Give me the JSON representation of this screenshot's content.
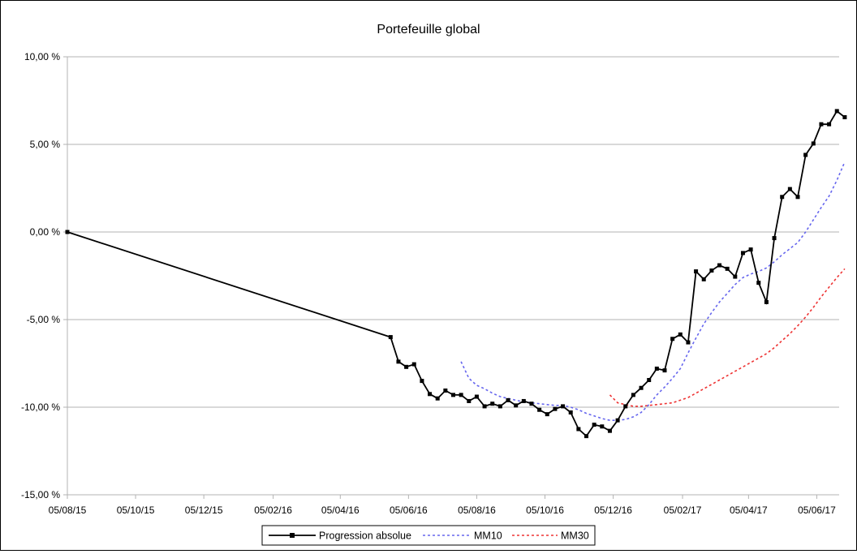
{
  "chart_data": {
    "type": "line",
    "title": "Portefeuille global",
    "xlabel": "",
    "ylabel": "",
    "ylim": [
      -15,
      10
    ],
    "y_ticks": [
      10,
      5,
      0,
      -5,
      -10,
      -15
    ],
    "y_tick_labels": [
      "10,00 %",
      "5,00 %",
      "0,00 %",
      "-5,00 %",
      "-10,00 %",
      "-15,00 %"
    ],
    "x_ticks": [
      "2015-08-05",
      "2015-10-05",
      "2015-12-05",
      "2016-02-05",
      "2016-04-05",
      "2016-06-05",
      "2016-08-05",
      "2016-10-05",
      "2016-12-05",
      "2017-02-05",
      "2017-04-05",
      "2017-06-05"
    ],
    "x_tick_labels": [
      "05/08/15",
      "05/10/15",
      "05/12/15",
      "05/02/16",
      "05/04/16",
      "05/06/16",
      "05/08/16",
      "05/10/16",
      "05/12/16",
      "05/02/17",
      "05/04/17",
      "05/06/17"
    ],
    "xlim": [
      "2015-08-05",
      "2017-06-25"
    ],
    "grid": "horizontal",
    "legend_position": "bottom",
    "legend": [
      "Progression absolue",
      "MM10",
      "MM30"
    ],
    "series": [
      {
        "name": "Progression absolue",
        "color": "#000000",
        "style": "solid-square-markers",
        "points": [
          [
            "2015-08-05",
            0.0
          ],
          [
            "2016-05-20",
            -6.0
          ],
          [
            "2016-05-27",
            -7.4
          ],
          [
            "2016-06-03",
            -7.7
          ],
          [
            "2016-06-10",
            -7.55
          ],
          [
            "2016-06-17",
            -8.5
          ],
          [
            "2016-06-24",
            -9.25
          ],
          [
            "2016-07-01",
            -9.5
          ],
          [
            "2016-07-08",
            -9.05
          ],
          [
            "2016-07-15",
            -9.3
          ],
          [
            "2016-07-22",
            -9.3
          ],
          [
            "2016-07-29",
            -9.65
          ],
          [
            "2016-08-05",
            -9.4
          ],
          [
            "2016-08-12",
            -9.95
          ],
          [
            "2016-08-19",
            -9.8
          ],
          [
            "2016-08-26",
            -9.95
          ],
          [
            "2016-09-02",
            -9.6
          ],
          [
            "2016-09-09",
            -9.9
          ],
          [
            "2016-09-16",
            -9.65
          ],
          [
            "2016-09-23",
            -9.8
          ],
          [
            "2016-09-30",
            -10.15
          ],
          [
            "2016-10-07",
            -10.4
          ],
          [
            "2016-10-14",
            -10.1
          ],
          [
            "2016-10-21",
            -9.95
          ],
          [
            "2016-10-28",
            -10.3
          ],
          [
            "2016-11-04",
            -11.25
          ],
          [
            "2016-11-11",
            -11.65
          ],
          [
            "2016-11-18",
            -11.0
          ],
          [
            "2016-11-25",
            -11.1
          ],
          [
            "2016-12-02",
            -11.35
          ],
          [
            "2016-12-09",
            -10.75
          ],
          [
            "2016-12-16",
            -9.95
          ],
          [
            "2016-12-23",
            -9.3
          ],
          [
            "2016-12-30",
            -8.9
          ],
          [
            "2017-01-06",
            -8.45
          ],
          [
            "2017-01-13",
            -7.8
          ],
          [
            "2017-01-20",
            -7.9
          ],
          [
            "2017-01-27",
            -6.1
          ],
          [
            "2017-02-03",
            -5.85
          ],
          [
            "2017-02-10",
            -6.3
          ],
          [
            "2017-02-17",
            -2.25
          ],
          [
            "2017-02-24",
            -2.7
          ],
          [
            "2017-03-03",
            -2.2
          ],
          [
            "2017-03-10",
            -1.9
          ],
          [
            "2017-03-17",
            -2.1
          ],
          [
            "2017-03-24",
            -2.55
          ],
          [
            "2017-03-31",
            -1.2
          ],
          [
            "2017-04-07",
            -1.0
          ],
          [
            "2017-04-14",
            -2.9
          ],
          [
            "2017-04-21",
            -4.0
          ],
          [
            "2017-04-28",
            -0.35
          ],
          [
            "2017-05-05",
            2.0
          ],
          [
            "2017-05-12",
            2.45
          ],
          [
            "2017-05-19",
            2.0
          ],
          [
            "2017-05-26",
            4.4
          ],
          [
            "2017-06-02",
            5.05
          ],
          [
            "2017-06-09",
            6.15
          ],
          [
            "2017-06-16",
            6.15
          ],
          [
            "2017-06-23",
            6.9
          ],
          [
            "2017-06-30",
            6.55
          ]
        ]
      },
      {
        "name": "MM10",
        "color": "#6666ee",
        "style": "dashed",
        "points": [
          [
            "2016-07-22",
            -7.4
          ],
          [
            "2016-07-29",
            -8.35
          ],
          [
            "2016-08-05",
            -8.75
          ],
          [
            "2016-08-12",
            -8.95
          ],
          [
            "2016-08-19",
            -9.2
          ],
          [
            "2016-08-26",
            -9.4
          ],
          [
            "2016-09-02",
            -9.5
          ],
          [
            "2016-09-09",
            -9.6
          ],
          [
            "2016-09-16",
            -9.7
          ],
          [
            "2016-09-23",
            -9.75
          ],
          [
            "2016-09-30",
            -9.8
          ],
          [
            "2016-10-07",
            -9.85
          ],
          [
            "2016-10-14",
            -9.9
          ],
          [
            "2016-10-21",
            -9.9
          ],
          [
            "2016-10-28",
            -10.0
          ],
          [
            "2016-11-04",
            -10.15
          ],
          [
            "2016-11-11",
            -10.35
          ],
          [
            "2016-11-18",
            -10.5
          ],
          [
            "2016-11-25",
            -10.65
          ],
          [
            "2016-12-02",
            -10.75
          ],
          [
            "2016-12-09",
            -10.75
          ],
          [
            "2016-12-16",
            -10.7
          ],
          [
            "2016-12-23",
            -10.55
          ],
          [
            "2016-12-30",
            -10.3
          ],
          [
            "2017-01-06",
            -9.85
          ],
          [
            "2017-01-13",
            -9.3
          ],
          [
            "2017-01-20",
            -8.85
          ],
          [
            "2017-01-27",
            -8.35
          ],
          [
            "2017-02-03",
            -7.8
          ],
          [
            "2017-02-10",
            -6.9
          ],
          [
            "2017-02-17",
            -6.05
          ],
          [
            "2017-02-24",
            -5.25
          ],
          [
            "2017-03-03",
            -4.6
          ],
          [
            "2017-03-10",
            -4.0
          ],
          [
            "2017-03-17",
            -3.5
          ],
          [
            "2017-03-24",
            -3.0
          ],
          [
            "2017-03-31",
            -2.6
          ],
          [
            "2017-04-07",
            -2.4
          ],
          [
            "2017-04-14",
            -2.25
          ],
          [
            "2017-04-21",
            -2.05
          ],
          [
            "2017-04-28",
            -1.7
          ],
          [
            "2017-05-05",
            -1.3
          ],
          [
            "2017-05-12",
            -0.95
          ],
          [
            "2017-05-19",
            -0.6
          ],
          [
            "2017-05-26",
            0.0
          ],
          [
            "2017-06-02",
            0.7
          ],
          [
            "2017-06-09",
            1.4
          ],
          [
            "2017-06-16",
            2.05
          ],
          [
            "2017-06-23",
            2.95
          ],
          [
            "2017-06-30",
            4.0
          ]
        ]
      },
      {
        "name": "MM30",
        "color": "#ee3333",
        "style": "dashed",
        "points": [
          [
            "2016-12-02",
            -9.3
          ],
          [
            "2016-12-09",
            -9.75
          ],
          [
            "2016-12-16",
            -9.85
          ],
          [
            "2016-12-23",
            -9.95
          ],
          [
            "2016-12-30",
            -9.95
          ],
          [
            "2017-01-06",
            -9.9
          ],
          [
            "2017-01-13",
            -9.85
          ],
          [
            "2017-01-20",
            -9.8
          ],
          [
            "2017-01-27",
            -9.75
          ],
          [
            "2017-02-03",
            -9.6
          ],
          [
            "2017-02-10",
            -9.45
          ],
          [
            "2017-02-17",
            -9.2
          ],
          [
            "2017-02-24",
            -8.95
          ],
          [
            "2017-03-03",
            -8.7
          ],
          [
            "2017-03-10",
            -8.45
          ],
          [
            "2017-03-17",
            -8.2
          ],
          [
            "2017-03-24",
            -7.95
          ],
          [
            "2017-03-31",
            -7.7
          ],
          [
            "2017-04-07",
            -7.45
          ],
          [
            "2017-04-14",
            -7.2
          ],
          [
            "2017-04-21",
            -6.95
          ],
          [
            "2017-04-28",
            -6.6
          ],
          [
            "2017-05-05",
            -6.2
          ],
          [
            "2017-05-12",
            -5.8
          ],
          [
            "2017-05-19",
            -5.35
          ],
          [
            "2017-05-26",
            -4.85
          ],
          [
            "2017-06-02",
            -4.3
          ],
          [
            "2017-06-09",
            -3.7
          ],
          [
            "2017-06-16",
            -3.15
          ],
          [
            "2017-06-23",
            -2.6
          ],
          [
            "2017-06-30",
            -2.1
          ]
        ]
      }
    ]
  }
}
